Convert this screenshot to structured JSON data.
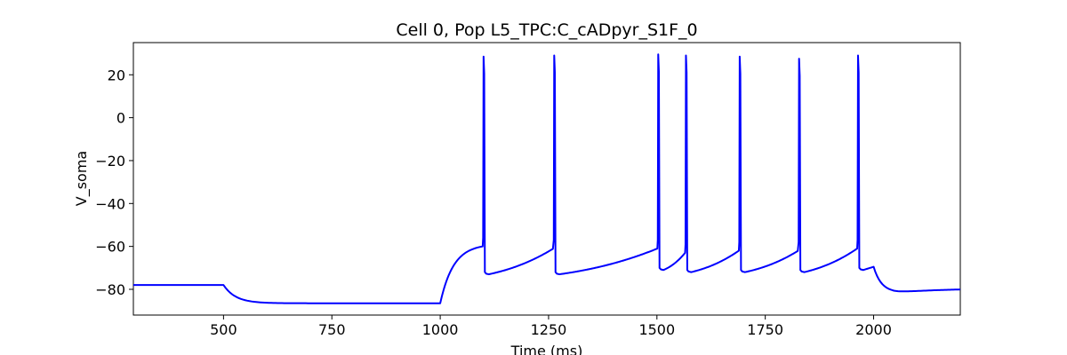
{
  "chart_data": {
    "type": "line",
    "title": "Cell 0, Pop L5_TPC:C_cADpyr_S1F_0",
    "xlabel": "Time (ms)",
    "ylabel": "V_soma",
    "xlim": [
      292,
      2200
    ],
    "ylim": [
      -92,
      35
    ],
    "xticks": [
      500,
      750,
      1000,
      1250,
      1500,
      1750,
      2000
    ],
    "yticks": [
      -80,
      -60,
      -40,
      -20,
      0,
      20
    ],
    "grid": false,
    "series": [
      {
        "color": "#0000ff",
        "rest_before_ms": 500,
        "rest_potential_mV": -78,
        "hyperpolarized_mV": -86.5,
        "hyperpolarization_end_ms": 1000,
        "depolarization_end_ms": 2000,
        "recovery_potential_mV": -79.5,
        "spike_times_ms": [
          1100,
          1263,
          1503,
          1567,
          1691,
          1828,
          1964
        ],
        "spike_peaks_mV": [
          28.5,
          29,
          29.5,
          29,
          28.5,
          27.5,
          29
        ],
        "after_spike_mV": [
          -73,
          -73,
          -71,
          -72,
          -72,
          -72,
          -71
        ],
        "pre_spike_mV": [
          -60,
          -61,
          -61,
          -63,
          -62,
          -62,
          -61
        ]
      }
    ]
  }
}
